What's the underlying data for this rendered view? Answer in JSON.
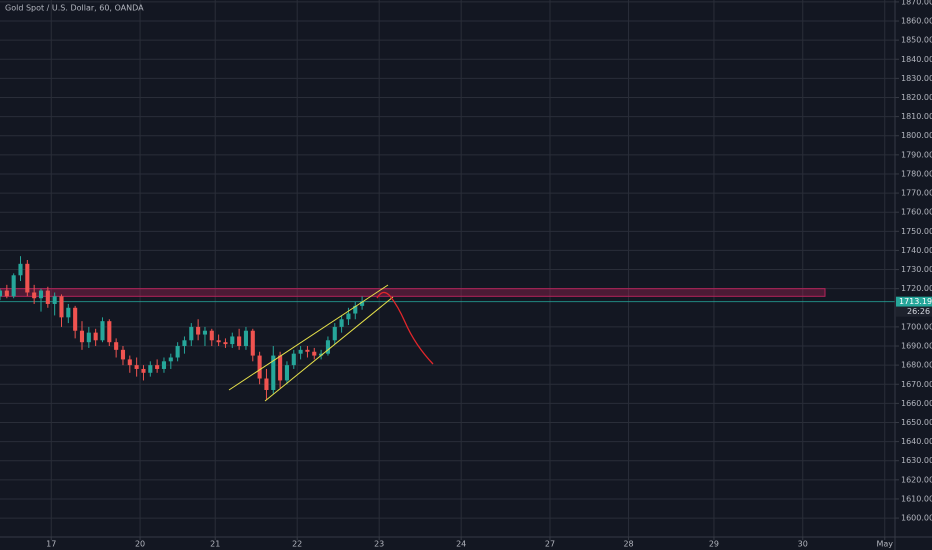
{
  "chart_data": {
    "type": "candlestick",
    "title": "Gold Spot / U.S. Dollar, 60, OANDA",
    "x": [
      0,
      2,
      4,
      6,
      8,
      10,
      12,
      14,
      16,
      18,
      20,
      22,
      24,
      26,
      28,
      30,
      32,
      34,
      36,
      38,
      40,
      42,
      44,
      46,
      48,
      50,
      52,
      54,
      56,
      58,
      60,
      62,
      64,
      66,
      68,
      70,
      72,
      74,
      76,
      78,
      80,
      82,
      84,
      86,
      88,
      90,
      92,
      94,
      96,
      98,
      100,
      102,
      104,
      106
    ],
    "open": [
      1716,
      1719,
      1716,
      1727,
      1733,
      1718,
      1715,
      1719,
      1712,
      1716,
      1705,
      1710,
      1698,
      1692,
      1697,
      1693,
      1703,
      1692,
      1688,
      1683,
      1680,
      1678,
      1676,
      1680,
      1678,
      1682,
      1684,
      1690,
      1693,
      1700,
      1696,
      1698,
      1693,
      1692,
      1691,
      1695,
      1690,
      1698,
      1685,
      1673,
      1667,
      1685,
      1672,
      1680,
      1686,
      1688,
      1687,
      1685,
      1686,
      1693,
      1700,
      1704,
      1707,
      1711
    ],
    "high": [
      1720,
      1722,
      1728,
      1737,
      1735,
      1722,
      1720,
      1721,
      1718,
      1717,
      1712,
      1711,
      1703,
      1700,
      1699,
      1705,
      1704,
      1694,
      1690,
      1685,
      1684,
      1680,
      1682,
      1683,
      1684,
      1686,
      1692,
      1695,
      1702,
      1704,
      1700,
      1699,
      1696,
      1694,
      1697,
      1699,
      1700,
      1699,
      1687,
      1678,
      1690,
      1687,
      1682,
      1688,
      1690,
      1690,
      1689,
      1688,
      1695,
      1702,
      1706,
      1710,
      1713,
      1716
    ],
    "low": [
      1714,
      1715,
      1715,
      1724,
      1716,
      1712,
      1708,
      1710,
      1706,
      1700,
      1702,
      1694,
      1688,
      1689,
      1690,
      1692,
      1690,
      1684,
      1680,
      1676,
      1674,
      1672,
      1674,
      1676,
      1676,
      1678,
      1682,
      1686,
      1690,
      1693,
      1690,
      1690,
      1690,
      1689,
      1689,
      1688,
      1688,
      1682,
      1670,
      1662,
      1665,
      1668,
      1670,
      1678,
      1683,
      1684,
      1683,
      1683,
      1685,
      1691,
      1697,
      1701,
      1704,
      1709
    ],
    "close": [
      1719,
      1716,
      1727,
      1733,
      1718,
      1715,
      1719,
      1712,
      1716,
      1705,
      1710,
      1698,
      1692,
      1697,
      1693,
      1703,
      1692,
      1688,
      1683,
      1680,
      1678,
      1676,
      1680,
      1678,
      1682,
      1684,
      1690,
      1693,
      1700,
      1696,
      1698,
      1693,
      1692,
      1691,
      1695,
      1690,
      1698,
      1685,
      1673,
      1667,
      1685,
      1672,
      1680,
      1686,
      1688,
      1687,
      1685,
      1686,
      1693,
      1700,
      1704,
      1707,
      1711,
      1713.193
    ],
    "up_color": "#26a69a",
    "down_color": "#ef5350",
    "xlim": [
      0,
      262
    ],
    "xticks": [
      {
        "value": 15,
        "label": "17"
      },
      {
        "value": 41,
        "label": "20"
      },
      {
        "value": 63,
        "label": "21"
      },
      {
        "value": 87,
        "label": "22"
      },
      {
        "value": 111,
        "label": "23"
      },
      {
        "value": 135,
        "label": "24"
      },
      {
        "value": 161,
        "label": "27"
      },
      {
        "value": 184,
        "label": "28"
      },
      {
        "value": 209,
        "label": "29"
      },
      {
        "value": 235,
        "label": "30"
      },
      {
        "value": 259,
        "label": "May"
      }
    ],
    "ylim": [
      1590.1,
      1871
    ],
    "yticks": [
      {
        "value": 1600,
        "label": "1600.000"
      },
      {
        "value": 1610,
        "label": "1610.000"
      },
      {
        "value": 1620,
        "label": "1620.000"
      },
      {
        "value": 1630,
        "label": "1630.000"
      },
      {
        "value": 1640,
        "label": "1640.000"
      },
      {
        "value": 1650,
        "label": "1650.000"
      },
      {
        "value": 1660,
        "label": "1660.000"
      },
      {
        "value": 1670,
        "label": "1670.000"
      },
      {
        "value": 1680,
        "label": "1680.000"
      },
      {
        "value": 1690,
        "label": "1690.000"
      },
      {
        "value": 1700,
        "label": "1700.000"
      },
      {
        "value": 1720,
        "label": "1720.000"
      },
      {
        "value": 1730,
        "label": "1730.000"
      },
      {
        "value": 1740,
        "label": "1740.000"
      },
      {
        "value": 1750,
        "label": "1750.000"
      },
      {
        "value": 1760,
        "label": "1760.000"
      },
      {
        "value": 1770,
        "label": "1770.000"
      },
      {
        "value": 1780,
        "label": "1780.000"
      },
      {
        "value": 1790,
        "label": "1790.000"
      },
      {
        "value": 1800,
        "label": "1800.000"
      },
      {
        "value": 1810,
        "label": "1810.000"
      },
      {
        "value": 1820,
        "label": "1820.000"
      },
      {
        "value": 1830,
        "label": "1830.000"
      },
      {
        "value": 1840,
        "label": "1840.000"
      },
      {
        "value": 1850,
        "label": "1850.000"
      },
      {
        "value": 1860,
        "label": "1860.000"
      },
      {
        "value": 1870,
        "label": "1870.000"
      }
    ],
    "grid": true,
    "zone": {
      "low": 1716,
      "high": 1720,
      "color": "#b4235a"
    },
    "last_price": {
      "value": 1713.193,
      "label": "1713.193"
    },
    "countdown": "26:26"
  }
}
